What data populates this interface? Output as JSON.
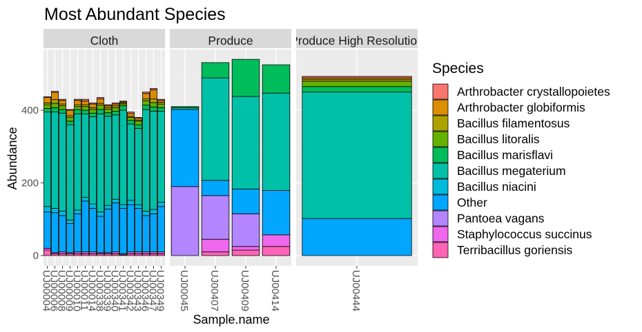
{
  "chart_data": {
    "type": "bar",
    "stacked": true,
    "title": "Most Abundant Species",
    "xlabel": "Sample.name",
    "ylabel": "Abundance",
    "ylim": [
      0,
      550
    ],
    "yticks": [
      0,
      200,
      400
    ],
    "grid": true,
    "legend": {
      "title": "Species",
      "placement": "right"
    },
    "colors": {
      "Arthrobacter crystallopoietes": "#F8766D",
      "Arthrobacter globiformis": "#DB8E00",
      "Bacillus filamentosus": "#AEA200",
      "Bacillus litoralis": "#64B200",
      "Bacillus marisflavi": "#00BD5C",
      "Bacillus megaterium": "#00C1A7",
      "Bacillus niacini": "#00BADE",
      "Other": "#00A6FF",
      "Pantoea vagans": "#B385FF",
      "Staphylococcus succinus": "#EF67EB",
      "Terribacillus goriensis": "#FF63B6"
    },
    "species_order": [
      "Arthrobacter crystallopoietes",
      "Arthrobacter globiformis",
      "Bacillus filamentosus",
      "Bacillus litoralis",
      "Bacillus marisflavi",
      "Bacillus megaterium",
      "Bacillus niacini",
      "Other",
      "Pantoea vagans",
      "Staphylococcus succinus",
      "Terribacillus goriensis"
    ],
    "facets": [
      {
        "name": "Cloth",
        "samples": [
          {
            "name": "UJ00004",
            "values": {
              "Terribacillus goriensis": 15,
              "Staphylococcus succinus": 5,
              "Other": 100,
              "Bacillus niacini": 15,
              "Bacillus megaterium": 260,
              "Bacillus marisflavi": 10,
              "Bacillus litoralis": 10,
              "Bacillus filamentosus": 5,
              "Arthrobacter globiformis": 15,
              "Arthrobacter crystallopoietes": 2
            }
          },
          {
            "name": "UJ00006",
            "values": {
              "Terribacillus goriensis": 5,
              "Staphylococcus succinus": 3,
              "Other": 110,
              "Bacillus niacini": 12,
              "Bacillus megaterium": 265,
              "Bacillus marisflavi": 12,
              "Bacillus litoralis": 12,
              "Bacillus filamentosus": 10,
              "Arthrobacter globiformis": 20,
              "Arthrobacter crystallopoietes": 3
            }
          },
          {
            "name": "UJ00008",
            "values": {
              "Terribacillus goriensis": 5,
              "Staphylococcus succinus": 5,
              "Other": 100,
              "Bacillus niacini": 12,
              "Bacillus megaterium": 270,
              "Bacillus marisflavi": 10,
              "Bacillus litoralis": 10,
              "Bacillus filamentosus": 5,
              "Arthrobacter globiformis": 10,
              "Arthrobacter crystallopoietes": 3
            }
          },
          {
            "name": "UJ00009",
            "values": {
              "Terribacillus goriensis": 5,
              "Staphylococcus succinus": 3,
              "Other": 80,
              "Bacillus niacini": 10,
              "Bacillus megaterium": 262,
              "Bacillus marisflavi": 10,
              "Bacillus litoralis": 10,
              "Bacillus filamentosus": 5,
              "Arthrobacter globiformis": 15,
              "Arthrobacter crystallopoietes": 2
            }
          },
          {
            "name": "UJ00010",
            "values": {
              "Terribacillus goriensis": 5,
              "Staphylococcus succinus": 5,
              "Other": 105,
              "Bacillus niacini": 10,
              "Bacillus megaterium": 265,
              "Bacillus marisflavi": 12,
              "Bacillus litoralis": 8,
              "Bacillus filamentosus": 5,
              "Arthrobacter globiformis": 12,
              "Arthrobacter crystallopoietes": 3
            }
          },
          {
            "name": "UJ00011",
            "values": {
              "Terribacillus goriensis": 5,
              "Staphylococcus succinus": 5,
              "Other": 140,
              "Bacillus niacini": 10,
              "Bacillus megaterium": 230,
              "Bacillus marisflavi": 10,
              "Bacillus litoralis": 10,
              "Bacillus filamentosus": 5,
              "Arthrobacter globiformis": 10,
              "Arthrobacter crystallopoietes": 5
            }
          },
          {
            "name": "UJ00014",
            "values": {
              "Terribacillus goriensis": 5,
              "Staphylococcus succinus": 5,
              "Other": 120,
              "Bacillus niacini": 12,
              "Bacillus megaterium": 240,
              "Bacillus marisflavi": 10,
              "Bacillus litoralis": 10,
              "Bacillus filamentosus": 5,
              "Arthrobacter globiformis": 10,
              "Arthrobacter crystallopoietes": 3
            }
          },
          {
            "name": "UJ00338",
            "values": {
              "Terribacillus goriensis": 5,
              "Staphylococcus succinus": 3,
              "Other": 100,
              "Bacillus niacini": 12,
              "Bacillus megaterium": 270,
              "Bacillus marisflavi": 12,
              "Bacillus litoralis": 12,
              "Bacillus filamentosus": 5,
              "Arthrobacter globiformis": 12,
              "Arthrobacter crystallopoietes": 4
            }
          },
          {
            "name": "UJ00339",
            "values": {
              "Terribacillus goriensis": 5,
              "Staphylococcus succinus": 3,
              "Other": 120,
              "Bacillus niacini": 10,
              "Bacillus megaterium": 245,
              "Bacillus marisflavi": 10,
              "Bacillus litoralis": 10,
              "Bacillus filamentosus": 5,
              "Arthrobacter globiformis": 5,
              "Arthrobacter crystallopoietes": 2
            }
          },
          {
            "name": "UJ00340",
            "values": {
              "Terribacillus goriensis": 5,
              "Staphylococcus succinus": 5,
              "Other": 135,
              "Bacillus niacini": 10,
              "Bacillus megaterium": 232,
              "Bacillus marisflavi": 10,
              "Bacillus litoralis": 10,
              "Bacillus filamentosus": 5,
              "Arthrobacter globiformis": 5,
              "Arthrobacter crystallopoietes": 3
            }
          },
          {
            "name": "UJ00341",
            "values": {
              "Terribacillus goriensis": 2,
              "Staphylococcus succinus": 3,
              "Other": 125,
              "Bacillus niacini": 10,
              "Bacillus megaterium": 260,
              "Bacillus marisflavi": 12,
              "Bacillus litoralis": 5,
              "Bacillus filamentosus": 3,
              "Arthrobacter globiformis": 3,
              "Arthrobacter crystallopoietes": 2
            }
          },
          {
            "name": "UJ00342",
            "values": {
              "Terribacillus goriensis": 5,
              "Staphylococcus succinus": 5,
              "Other": 130,
              "Bacillus niacini": 12,
              "Bacillus megaterium": 210,
              "Bacillus marisflavi": 10,
              "Bacillus litoralis": 8,
              "Bacillus filamentosus": 3,
              "Arthrobacter globiformis": 8,
              "Arthrobacter crystallopoietes": 4
            }
          },
          {
            "name": "UJ00343",
            "values": {
              "Terribacillus goriensis": 5,
              "Staphylococcus succinus": 5,
              "Other": 120,
              "Bacillus niacini": 10,
              "Bacillus megaterium": 210,
              "Bacillus marisflavi": 10,
              "Bacillus litoralis": 10,
              "Bacillus filamentosus": 3,
              "Arthrobacter globiformis": 5,
              "Arthrobacter crystallopoietes": 2
            }
          },
          {
            "name": "UJ00346",
            "values": {
              "Terribacillus goriensis": 5,
              "Staphylococcus succinus": 5,
              "Other": 100,
              "Bacillus niacini": 12,
              "Bacillus megaterium": 280,
              "Bacillus marisflavi": 12,
              "Bacillus litoralis": 12,
              "Bacillus filamentosus": 5,
              "Arthrobacter globiformis": 15,
              "Arthrobacter crystallopoietes": 4
            }
          },
          {
            "name": "UJ00347",
            "values": {
              "Terribacillus goriensis": 5,
              "Staphylococcus succinus": 5,
              "Other": 105,
              "Bacillus niacini": 12,
              "Bacillus megaterium": 270,
              "Bacillus marisflavi": 12,
              "Bacillus litoralis": 12,
              "Bacillus filamentosus": 10,
              "Arthrobacter globiformis": 25,
              "Arthrobacter crystallopoietes": 4
            }
          },
          {
            "name": "UJ00349",
            "values": {
              "Terribacillus goriensis": 5,
              "Staphylococcus succinus": 5,
              "Other": 125,
              "Bacillus niacini": 12,
              "Bacillus megaterium": 250,
              "Bacillus marisflavi": 10,
              "Bacillus litoralis": 10,
              "Bacillus filamentosus": 5,
              "Arthrobacter globiformis": 5,
              "Arthrobacter crystallopoietes": 3
            }
          }
        ]
      },
      {
        "name": "Produce",
        "samples": [
          {
            "name": "UJ00045",
            "values": {
              "Terribacillus goriensis": 0,
              "Staphylococcus succinus": 0,
              "Pantoea vagans": 190,
              "Other": 212,
              "Bacillus niacini": 0,
              "Bacillus megaterium": 5,
              "Bacillus marisflavi": 3,
              "Bacillus litoralis": 0,
              "Bacillus filamentosus": 0,
              "Arthrobacter globiformis": 0,
              "Arthrobacter crystallopoietes": 0
            }
          },
          {
            "name": "UJ00407",
            "values": {
              "Terribacillus goriensis": 10,
              "Staphylococcus succinus": 35,
              "Pantoea vagans": 120,
              "Other": 42,
              "Bacillus niacini": 0,
              "Bacillus megaterium": 282,
              "Bacillus marisflavi": 42,
              "Bacillus litoralis": 0,
              "Bacillus filamentosus": 0,
              "Arthrobacter globiformis": 0,
              "Arthrobacter crystallopoietes": 0
            }
          },
          {
            "name": "UJ00409",
            "values": {
              "Terribacillus goriensis": 15,
              "Staphylococcus succinus": 10,
              "Pantoea vagans": 90,
              "Other": 68,
              "Bacillus niacini": 0,
              "Bacillus megaterium": 255,
              "Bacillus marisflavi": 102,
              "Bacillus litoralis": 0,
              "Bacillus filamentosus": 0,
              "Arthrobacter globiformis": 0,
              "Arthrobacter crystallopoietes": 0
            }
          },
          {
            "name": "UJ00414",
            "values": {
              "Terribacillus goriensis": 25,
              "Staphylococcus succinus": 32,
              "Pantoea vagans": 0,
              "Other": 122,
              "Bacillus niacini": 0,
              "Bacillus megaterium": 268,
              "Bacillus marisflavi": 78,
              "Bacillus litoralis": 0,
              "Bacillus filamentosus": 0,
              "Arthrobacter globiformis": 0,
              "Arthrobacter crystallopoietes": 0
            }
          }
        ]
      },
      {
        "name": "Produce High Resolution",
        "samples": [
          {
            "name": "UJ00444",
            "values": {
              "Terribacillus goriensis": 0,
              "Staphylococcus succinus": 0,
              "Pantoea vagans": 0,
              "Other": 102,
              "Bacillus niacini": 0,
              "Bacillus megaterium": 348,
              "Bacillus marisflavi": 15,
              "Bacillus litoralis": 15,
              "Bacillus filamentosus": 5,
              "Arthrobacter globiformis": 4,
              "Arthrobacter crystallopoietes": 4
            }
          }
        ]
      }
    ]
  }
}
